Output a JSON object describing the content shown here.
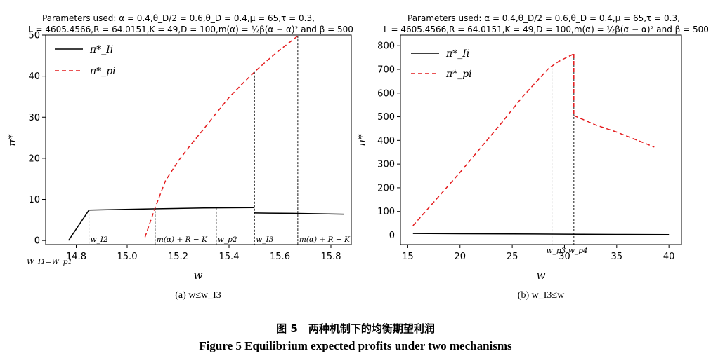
{
  "figure": {
    "caption_cn": "图 5　两种机制下的均衡期望利润",
    "caption_en": "Figure 5    Equilibrium expected profits under two mechanisms"
  },
  "chart_data": [
    {
      "type": "line",
      "params_line1": "Parameters  used:  α = 0.4,θ_D/2 = 0.6,θ_D = 0.4,μ = 65,τ = 0.3,",
      "params_line2": "L = 4605.4566,R = 64.0151,K = 49,D = 100,m(α) = ½β(α − α)² and β = 500",
      "xlabel": "w",
      "ylabel": "π*",
      "subcaption": "(a) w≤w_I3",
      "xlim": [
        14.68,
        15.88
      ],
      "ylim": [
        -1,
        50
      ],
      "xticks": [
        14.8,
        15.0,
        15.2,
        15.4,
        15.6,
        15.8
      ],
      "xtick_labels": [
        "14.8",
        "15.0",
        "15.2",
        "15.4",
        "15.6",
        "15.8"
      ],
      "yticks": [
        0,
        10,
        20,
        30,
        40,
        50
      ],
      "legend": [
        "π*_Ii",
        "π*_pi"
      ],
      "legend_location": "upper-left",
      "grid": false,
      "series": [
        {
          "name": "π*_Ii",
          "color": "#000000",
          "dash": "solid",
          "segments": [
            [
              [
                14.77,
                0
              ],
              [
                14.85,
                7.4
              ],
              [
                15.1,
                7.7
              ],
              [
                15.3,
                7.9
              ],
              [
                15.5,
                8.0
              ]
            ],
            [
              [
                15.5,
                6.7
              ],
              [
                15.65,
                6.6
              ],
              [
                15.85,
                6.4
              ]
            ]
          ]
        },
        {
          "name": "π*_pi",
          "color": "#e41a1c",
          "dash": "dashed",
          "segments": [
            [
              [
                15.07,
                0.8
              ],
              [
                15.11,
                8.0
              ],
              [
                15.15,
                14.5
              ],
              [
                15.2,
                19.3
              ],
              [
                15.25,
                23.3
              ],
              [
                15.3,
                27.1
              ],
              [
                15.35,
                31.0
              ],
              [
                15.4,
                34.8
              ],
              [
                15.45,
                38.0
              ],
              [
                15.5,
                41.0
              ],
              [
                15.55,
                43.8
              ],
              [
                15.6,
                46.4
              ],
              [
                15.65,
                48.8
              ],
              [
                15.67,
                49.8
              ]
            ]
          ]
        }
      ],
      "markers": [
        {
          "x": 14.85,
          "y": 7.4,
          "label": "w_I2"
        },
        {
          "x": 15.11,
          "y": 8.0,
          "label": "m(α) + R − K"
        },
        {
          "x": 15.35,
          "y": 7.9,
          "label": "w_p2"
        },
        {
          "x": 15.5,
          "y": 41.0,
          "label": "w_I3"
        },
        {
          "x": 15.67,
          "y": 49.8,
          "label": "m(α) + R − K"
        }
      ],
      "origin_label": "W_I1=W_p1"
    },
    {
      "type": "line",
      "params_line1": "Parameters  used:  α = 0.4,θ_D/2 = 0.6,θ_D = 0.4,μ = 65,τ = 0.3,",
      "params_line2": "L = 4605.4566,R = 64.0151,K = 49,D = 100,m(α) = ½β(α − α)² and β = 500",
      "xlabel": "w",
      "ylabel": "π*",
      "subcaption": "(b) w_I3≤w",
      "xlim": [
        14.3,
        41.2
      ],
      "ylim": [
        -40,
        845
      ],
      "xticks": [
        15,
        20,
        25,
        30,
        35,
        40
      ],
      "xtick_labels": [
        "15",
        "20",
        "25",
        "30",
        "35",
        "40"
      ],
      "yticks": [
        0,
        100,
        200,
        300,
        400,
        500,
        600,
        700,
        800
      ],
      "legend": [
        "π*_Ii",
        "π*_pi"
      ],
      "legend_location": "upper-left",
      "grid": false,
      "series": [
        {
          "name": "π*_Ii",
          "color": "#000000",
          "dash": "solid",
          "segments": [
            [
              [
                15.5,
                7
              ],
              [
                20,
                6
              ],
              [
                25,
                5
              ],
              [
                30,
                4
              ],
              [
                35,
                3
              ],
              [
                40,
                2
              ]
            ]
          ]
        },
        {
          "name": "π*_pi",
          "color": "#e41a1c",
          "dash": "dashed",
          "segments": [
            [
              [
                15.5,
                40
              ],
              [
                18,
                165
              ],
              [
                20,
                265
              ],
              [
                22,
                370
              ],
              [
                24,
                475
              ],
              [
                26,
                585
              ],
              [
                28.5,
                705
              ],
              [
                29.5,
                735
              ],
              [
                30.9,
                765
              ]
            ],
            [
              [
                30.9,
                765
              ],
              [
                30.9,
                505
              ]
            ],
            [
              [
                30.9,
                505
              ],
              [
                33,
                465
              ],
              [
                35,
                435
              ],
              [
                37,
                400
              ],
              [
                38.6,
                372
              ]
            ]
          ]
        }
      ],
      "markers": [
        {
          "x": 28.8,
          "y": 705,
          "label": "w_p3"
        },
        {
          "x": 30.9,
          "y": 765,
          "label": "w_p4"
        }
      ]
    }
  ]
}
